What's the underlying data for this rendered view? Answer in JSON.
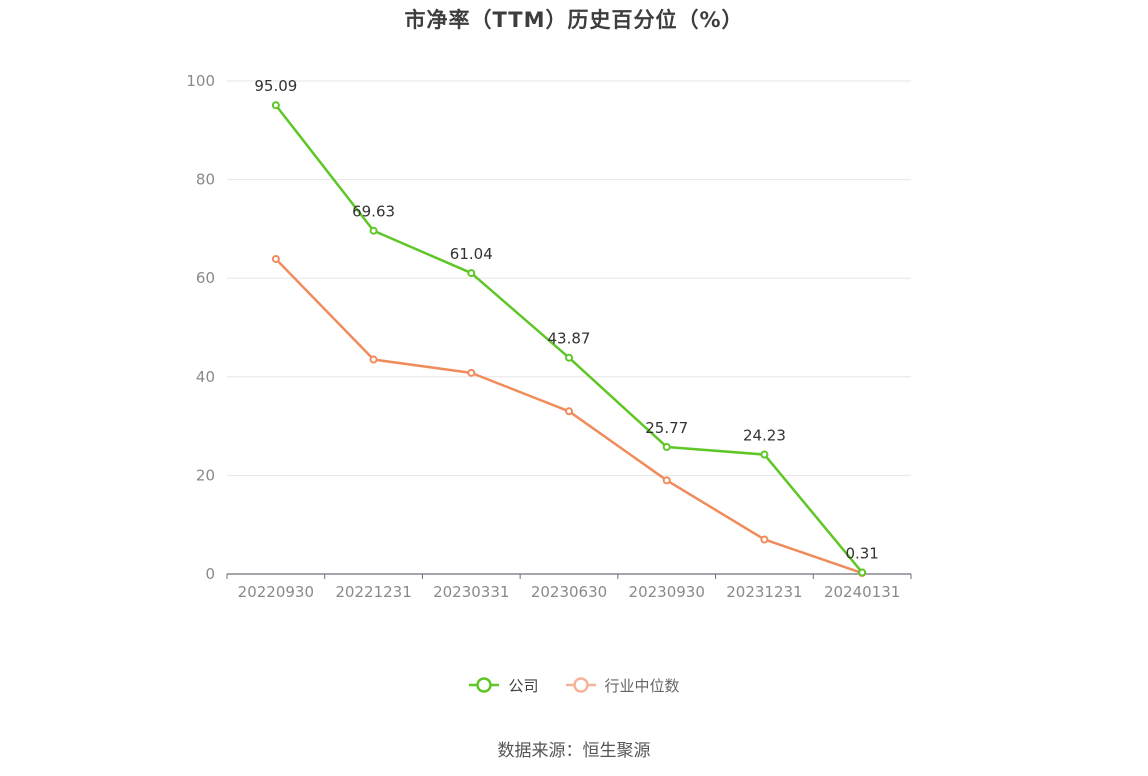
{
  "chart_data": {
    "type": "line",
    "title": "市净率（TTM）历史百分位（%）",
    "categories": [
      "20220930",
      "20221231",
      "20230331",
      "20230630",
      "20230930",
      "20231231",
      "20240131"
    ],
    "ylim": [
      0,
      100
    ],
    "yticks": [
      0,
      20,
      40,
      60,
      80,
      100
    ],
    "grid": true,
    "legend_position": "bottom",
    "series": [
      {
        "name": "公司",
        "color": "#5ec626",
        "values": [
          95.09,
          69.63,
          61.04,
          43.87,
          25.77,
          24.23,
          0.31
        ],
        "labels": [
          "95.09",
          "69.63",
          "61.04",
          "43.87",
          "25.77",
          "24.23",
          "0.31"
        ]
      },
      {
        "name": "行业中位数",
        "color": "#f08c5c",
        "legend_color": "#f5b49a",
        "values": [
          63.9,
          43.5,
          40.8,
          33.0,
          19.0,
          7.0,
          0.2
        ]
      }
    ],
    "source": "数据来源：恒生聚源"
  }
}
